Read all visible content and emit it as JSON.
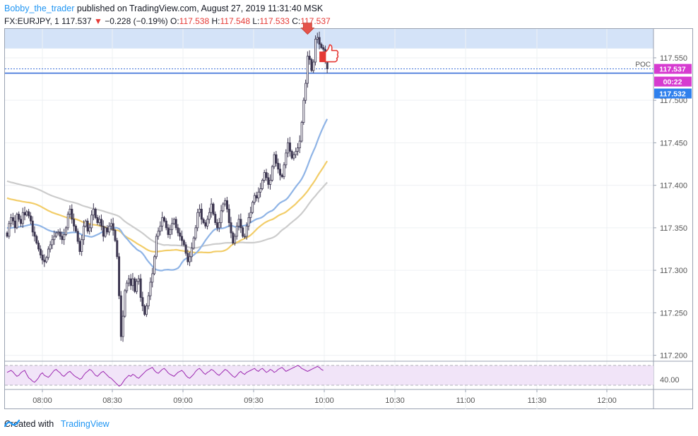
{
  "header": {
    "author": "Bobby_the_trader",
    "published_text": "published on TradingView.com, August 27, 2019 11:31:40 MSK",
    "symbol": "FX:EURJPY, 1",
    "last": "117.537",
    "change_arrow": "▼",
    "change": "−0.228 (−0.19%)",
    "o_label": "O:",
    "o_value": "117.538",
    "h_label": "H:",
    "h_value": "117.548",
    "l_label": "L:",
    "l_value": "117.533",
    "c_label": "C:",
    "c_value": "117.537"
  },
  "footer": {
    "created_with": "Created with",
    "brand": "TradingView",
    "logo_icon": "tradingview-logo-icon"
  },
  "colors": {
    "up_candle": "#ffffff",
    "down_candle": "#3c3650",
    "ma_fast": "#8fb4e6",
    "ma_mid": "#f2cd69",
    "ma_slow": "#cccccc",
    "zone": "#d4e3f8",
    "poc": "#3a6fd8",
    "rsi": "#9c27b0",
    "rsi_band": "#f1e4f8",
    "label_price": "#d63bd0",
    "label_poc": "#2f80ed"
  },
  "chart_data": {
    "type": "candlestick",
    "symbol": "FX:EURJPY",
    "timeframe": "1",
    "x_ticks": [
      "08:00",
      "08:30",
      "09:00",
      "09:30",
      "10:00",
      "10:30",
      "11:00",
      "11:30",
      "12:00"
    ],
    "y_ticks": [
      "117.200",
      "117.250",
      "117.300",
      "117.350",
      "117.400",
      "117.450",
      "117.500",
      "117.550"
    ],
    "ylim": [
      117.193,
      117.584
    ],
    "zone": [
      117.561,
      117.584
    ],
    "poc": {
      "label": "POC",
      "value": 117.532
    },
    "price_labels": {
      "last": "117.537",
      "countdown": "00:22",
      "poc": "117.532"
    },
    "close_series": [
      117.34,
      117.355,
      117.362,
      117.358,
      117.35,
      117.366,
      117.36,
      117.355,
      117.368,
      117.365,
      117.369,
      117.364,
      117.358,
      117.345,
      117.34,
      117.332,
      117.325,
      117.318,
      117.312,
      117.31,
      117.315,
      117.325,
      117.33,
      117.336,
      117.34,
      117.344,
      117.345,
      117.34,
      117.336,
      117.342,
      117.35,
      117.366,
      117.372,
      117.36,
      117.352,
      117.346,
      117.334,
      117.322,
      117.336,
      117.352,
      117.358,
      117.346,
      117.35,
      117.365,
      117.372,
      117.362,
      117.356,
      117.36,
      117.352,
      117.34,
      117.35,
      117.345,
      117.352,
      117.355,
      117.347,
      117.335,
      117.316,
      117.27,
      117.222,
      117.246,
      117.276,
      117.285,
      117.29,
      117.282,
      117.29,
      117.275,
      117.287,
      117.29,
      117.268,
      117.258,
      117.248,
      117.258,
      117.27,
      117.286,
      117.296,
      117.316,
      117.34,
      117.346,
      117.352,
      117.362,
      117.358,
      117.35,
      117.342,
      117.348,
      117.355,
      117.36,
      117.35,
      117.344,
      117.34,
      117.335,
      117.33,
      117.32,
      117.31,
      117.316,
      117.326,
      117.338,
      117.35,
      117.368,
      117.372,
      117.36,
      117.356,
      117.352,
      117.36,
      117.368,
      117.378,
      117.366,
      117.356,
      117.35,
      117.356,
      117.37,
      117.378,
      117.382,
      117.372,
      117.356,
      117.344,
      117.332,
      117.34,
      117.352,
      117.36,
      117.35,
      117.34,
      117.34,
      117.352,
      117.362,
      117.368,
      117.38,
      117.388,
      117.385,
      117.392,
      117.396,
      117.406,
      117.415,
      117.409,
      117.401,
      117.406,
      117.422,
      117.436,
      117.426,
      117.419,
      117.412,
      117.41,
      117.424,
      117.438,
      117.45,
      117.44,
      117.432,
      117.436,
      117.44,
      117.444,
      117.452,
      117.474,
      117.5,
      117.52,
      117.552,
      117.548,
      117.535,
      117.545,
      117.572,
      117.574,
      117.566,
      117.562,
      117.56,
      117.547,
      117.537
    ],
    "rsi": {
      "values": [
        56,
        58,
        60,
        57,
        52,
        48,
        50,
        55,
        58,
        60,
        52,
        45,
        42,
        38,
        36,
        40,
        45,
        52,
        55,
        50,
        48,
        46,
        50,
        55,
        60,
        62,
        58,
        55,
        50,
        48,
        52,
        56,
        58,
        54,
        50,
        47,
        45,
        42,
        44,
        50,
        55,
        58,
        62,
        60,
        55,
        50,
        48,
        52,
        56,
        58,
        54,
        50,
        46,
        44,
        40,
        36,
        32,
        28,
        30,
        36,
        42,
        46,
        50,
        48,
        52,
        50,
        46,
        44,
        48,
        52,
        56,
        60,
        62,
        64,
        66,
        60,
        56,
        54,
        58,
        62,
        64,
        60,
        55,
        52,
        50,
        48,
        52,
        56,
        58,
        60,
        56,
        50,
        46,
        44,
        48,
        52,
        58,
        62,
        64,
        60,
        55,
        52,
        56,
        58,
        62,
        60,
        56,
        52,
        50,
        54,
        58,
        62,
        60,
        56,
        52,
        48,
        46,
        50,
        55,
        58,
        54,
        52,
        56,
        58,
        60,
        62,
        64,
        60,
        58,
        62,
        64,
        60,
        56,
        58,
        62,
        60,
        56,
        58,
        62,
        64,
        66,
        62,
        58,
        60,
        62,
        64,
        66,
        68,
        70,
        68,
        64,
        62,
        60,
        58,
        60,
        62,
        64,
        66,
        68,
        66,
        62,
        60
      ],
      "labels": [
        "40.00"
      ]
    }
  }
}
